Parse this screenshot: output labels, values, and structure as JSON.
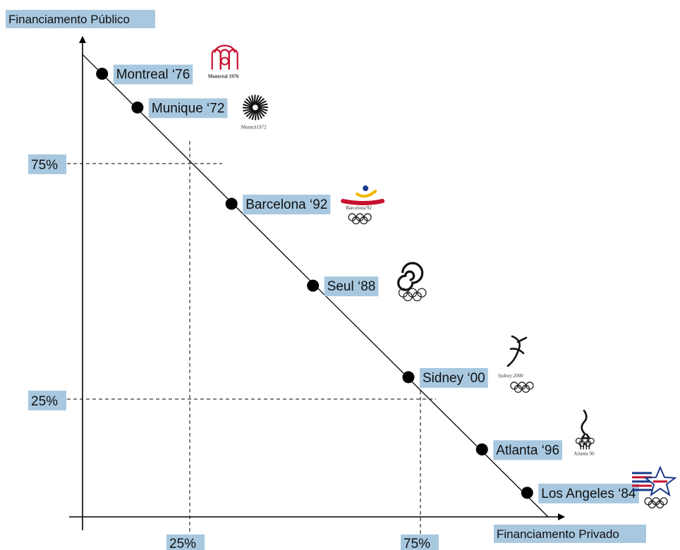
{
  "chart_data": {
    "type": "scatter",
    "title": "",
    "xlabel": "Financiamento Privado",
    "ylabel": "Financiamento Público",
    "xlim": [
      0,
      100
    ],
    "ylim": [
      0,
      100
    ],
    "x_ticks": [
      {
        "value": 25,
        "label": "25%"
      },
      {
        "value": 75,
        "label": "75%"
      }
    ],
    "y_ticks": [
      {
        "value": 25,
        "label": "25%"
      },
      {
        "value": 75,
        "label": "75%"
      }
    ],
    "trend_line": {
      "x": [
        0,
        100
      ],
      "y": [
        96,
        0
      ]
    },
    "points": [
      {
        "label": "Montreal ‘76",
        "x": 4.2,
        "y": 92.0,
        "logo": "montreal-1976-logo",
        "logo_text": "Montréal 1976"
      },
      {
        "label": "Munique ‘72",
        "x": 11.8,
        "y": 85.0,
        "logo": "munich-1972-logo",
        "logo_text": "Munich1972"
      },
      {
        "label": "Barcelona ‘92",
        "x": 32.0,
        "y": 65.0,
        "logo": "barcelona-1992-logo",
        "logo_text": "Barcelona'92"
      },
      {
        "label": "Seul ‘88",
        "x": 49.5,
        "y": 48.0,
        "logo": "seoul-1988-logo",
        "logo_text": ""
      },
      {
        "label": "Sidney ‘00",
        "x": 70.0,
        "y": 29.0,
        "logo": "sydney-2000-logo",
        "logo_text": "Sydney 2000"
      },
      {
        "label": "Atlanta ‘96",
        "x": 85.8,
        "y": 14.0,
        "logo": "atlanta-1996-logo",
        "logo_text": "Atlanta 96"
      },
      {
        "label": "Los Angeles ‘84",
        "x": 95.5,
        "y": 5.0,
        "logo": "los-angeles-1984-logo",
        "logo_text": ""
      }
    ],
    "label_box_color": "#a8c8e0",
    "grid": false,
    "legend": "none"
  }
}
